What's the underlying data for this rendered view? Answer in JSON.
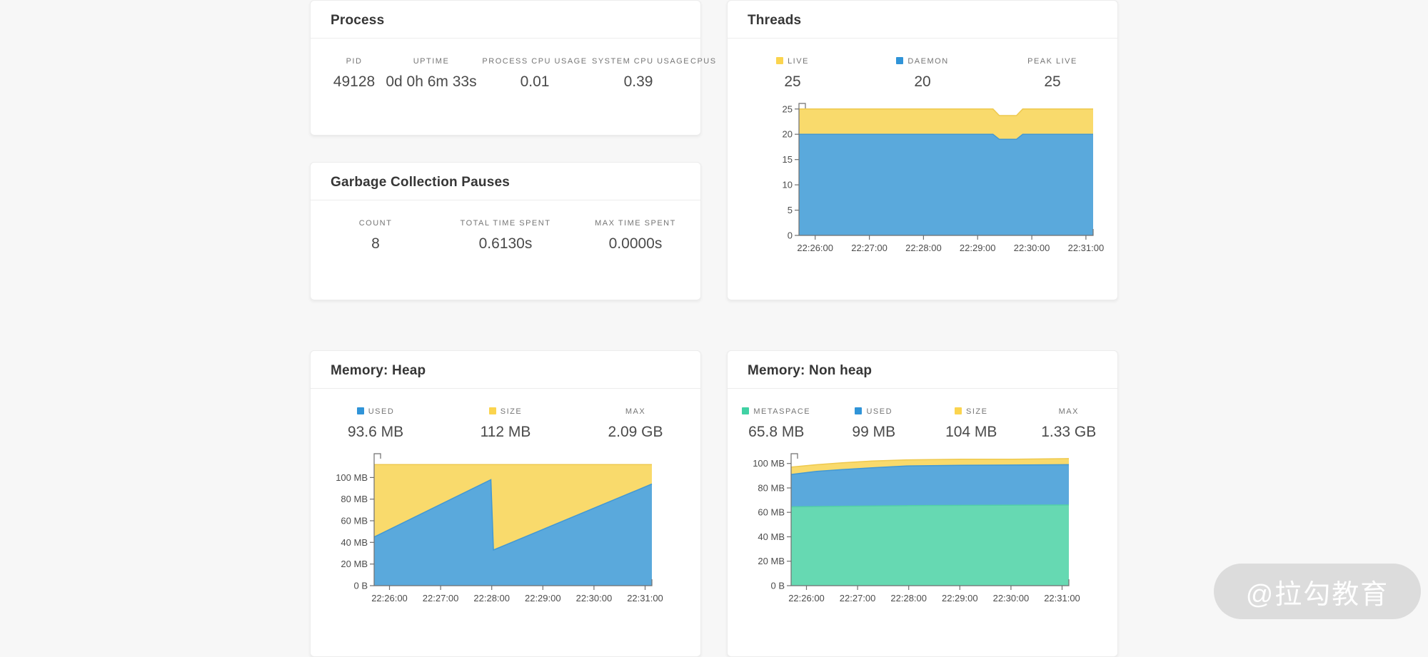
{
  "cards": {
    "process": {
      "title": "Process",
      "stats": [
        {
          "label": "PID",
          "value": "49128"
        },
        {
          "label": "UPTIME",
          "value": "0d 0h 6m 33s"
        },
        {
          "label": "PROCESS CPU USAGE",
          "value": "0.01"
        },
        {
          "label": "SYSTEM CPU USAGE",
          "value": "0.39"
        },
        {
          "label": "CPUS",
          "value": ""
        }
      ]
    },
    "threads": {
      "title": "Threads",
      "stats": [
        {
          "label": "LIVE",
          "value": "25",
          "square": "#fbd44e"
        },
        {
          "label": "DAEMON",
          "value": "20",
          "square": "#3094d8"
        },
        {
          "label": "PEAK LIVE",
          "value": "25"
        }
      ]
    },
    "gc": {
      "title": "Garbage Collection Pauses",
      "stats": [
        {
          "label": "COUNT",
          "value": "8"
        },
        {
          "label": "TOTAL TIME SPENT",
          "value": "0.6130s"
        },
        {
          "label": "MAX TIME SPENT",
          "value": "0.0000s"
        }
      ]
    },
    "heap": {
      "title": "Memory: Heap",
      "stats": [
        {
          "label": "USED",
          "value": "93.6 MB",
          "square": "#3094d8"
        },
        {
          "label": "SIZE",
          "value": "112 MB",
          "square": "#fbd44e"
        },
        {
          "label": "MAX",
          "value": "2.09 GB"
        }
      ]
    },
    "nonheap": {
      "title": "Memory: Non heap",
      "stats": [
        {
          "label": "METASPACE",
          "value": "65.8 MB",
          "square": "#41d1a4"
        },
        {
          "label": "USED",
          "value": "99 MB",
          "square": "#3094d8"
        },
        {
          "label": "SIZE",
          "value": "104 MB",
          "square": "#fbd44e"
        },
        {
          "label": "MAX",
          "value": "1.33 GB"
        }
      ]
    }
  },
  "watermark": {
    "text": "@拉勾教育"
  },
  "chart_data": [
    {
      "name": "threads",
      "type": "area",
      "title": "Threads",
      "legend": [
        "LIVE",
        "DAEMON"
      ],
      "x_max": 326,
      "x_ticks": [
        {
          "t": 18,
          "label": "22:26:00"
        },
        {
          "t": 78,
          "label": "22:27:00"
        },
        {
          "t": 138,
          "label": "22:28:00"
        },
        {
          "t": 198,
          "label": "22:29:00"
        },
        {
          "t": 258,
          "label": "22:30:00"
        },
        {
          "t": 318,
          "label": "22:31:00"
        }
      ],
      "y_max": 26.1,
      "y_ticks": [
        {
          "v": 0,
          "label": "0"
        },
        {
          "v": 5,
          "label": "5"
        },
        {
          "v": 10,
          "label": "10"
        },
        {
          "v": 15,
          "label": "15"
        },
        {
          "v": 20,
          "label": "20"
        },
        {
          "v": 25,
          "label": "25"
        }
      ],
      "series": [
        {
          "name": "LIVE",
          "fill": "#f9da6c",
          "stroke": "#eec94f",
          "points": [
            [
              0,
              25
            ],
            [
              215,
              25
            ],
            [
              222,
              23.7
            ],
            [
              241,
              23.7
            ],
            [
              248,
              25
            ],
            [
              326,
              25
            ]
          ]
        },
        {
          "name": "DAEMON",
          "fill": "#5aa9dc",
          "stroke": "#4298d4",
          "points": [
            [
              0,
              20
            ],
            [
              215,
              20
            ],
            [
              222,
              19
            ],
            [
              241,
              19
            ],
            [
              248,
              20
            ],
            [
              326,
              20
            ]
          ]
        }
      ]
    },
    {
      "name": "memory-heap",
      "type": "area",
      "title": "Memory: Heap",
      "legend": [
        "SIZE",
        "USED"
      ],
      "x_max": 326,
      "x_ticks": [
        {
          "t": 18,
          "label": "22:26:00"
        },
        {
          "t": 78,
          "label": "22:27:00"
        },
        {
          "t": 138,
          "label": "22:28:00"
        },
        {
          "t": 198,
          "label": "22:29:00"
        },
        {
          "t": 258,
          "label": "22:30:00"
        },
        {
          "t": 318,
          "label": "22:31:00"
        }
      ],
      "y_max": 122,
      "y_ticks": [
        {
          "v": 0,
          "label": "0 B"
        },
        {
          "v": 20,
          "label": "20 MB"
        },
        {
          "v": 40,
          "label": "40 MB"
        },
        {
          "v": 60,
          "label": "60 MB"
        },
        {
          "v": 80,
          "label": "80 MB"
        },
        {
          "v": 100,
          "label": "100 MB"
        }
      ],
      "series": [
        {
          "name": "SIZE",
          "fill": "#f9da6c",
          "stroke": "#eec94f",
          "points": [
            [
              0,
              112
            ],
            [
              326,
              112
            ]
          ]
        },
        {
          "name": "USED",
          "fill": "#5aa9dc",
          "stroke": "#4298d4",
          "points": [
            [
              0,
              45
            ],
            [
              137,
              98
            ],
            [
              140,
              33
            ],
            [
              326,
              94
            ]
          ]
        }
      ]
    },
    {
      "name": "memory-nonheap",
      "type": "area",
      "title": "Memory: Non heap",
      "legend": [
        "SIZE",
        "USED",
        "METASPACE"
      ],
      "x_max": 326,
      "x_ticks": [
        {
          "t": 18,
          "label": "22:26:00"
        },
        {
          "t": 78,
          "label": "22:27:00"
        },
        {
          "t": 138,
          "label": "22:28:00"
        },
        {
          "t": 198,
          "label": "22:29:00"
        },
        {
          "t": 258,
          "label": "22:30:00"
        },
        {
          "t": 318,
          "label": "22:31:00"
        }
      ],
      "y_max": 108,
      "y_ticks": [
        {
          "v": 0,
          "label": "0 B"
        },
        {
          "v": 20,
          "label": "20 MB"
        },
        {
          "v": 40,
          "label": "40 MB"
        },
        {
          "v": 60,
          "label": "60 MB"
        },
        {
          "v": 80,
          "label": "80 MB"
        },
        {
          "v": 100,
          "label": "100 MB"
        }
      ],
      "series": [
        {
          "name": "SIZE",
          "fill": "#f9da6c",
          "stroke": "#eec94f",
          "points": [
            [
              0,
              97
            ],
            [
              30,
              99
            ],
            [
              60,
              100.5
            ],
            [
              95,
              102
            ],
            [
              138,
              103
            ],
            [
              200,
              103.5
            ],
            [
              260,
              103.5
            ],
            [
              326,
              104
            ]
          ]
        },
        {
          "name": "USED",
          "fill": "#5aa9dc",
          "stroke": "#4298d4",
          "points": [
            [
              0,
              91
            ],
            [
              30,
              93.5
            ],
            [
              60,
              95
            ],
            [
              95,
              96.5
            ],
            [
              138,
              98
            ],
            [
              200,
              98.5
            ],
            [
              326,
              99
            ]
          ]
        },
        {
          "name": "METASPACE",
          "fill": "#66d9b2",
          "stroke": "#52d0a6",
          "points": [
            [
              0,
              64.5
            ],
            [
              60,
              65
            ],
            [
              138,
              65.5
            ],
            [
              326,
              66
            ]
          ]
        }
      ]
    }
  ]
}
